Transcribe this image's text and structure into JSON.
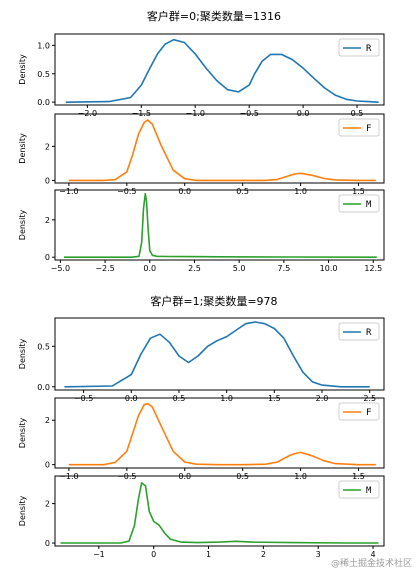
{
  "watermark": "@稀土掘金技术社区",
  "chart_data": [
    {
      "type": "line",
      "group_title": "客户群=0;聚类数量=1316",
      "ylabel": "Density",
      "series_name": "R",
      "color": "#1f77b4",
      "xlim": [
        -2.3,
        0.75
      ],
      "ylim": [
        -0.05,
        1.2
      ],
      "xticks": [
        -2.0,
        -1.5,
        -1.0,
        -0.5,
        0.0,
        0.5
      ],
      "xtick_labels": [
        "−2.0",
        "−1.5",
        "−1.0",
        "−0.5",
        "0.0",
        "0.5"
      ],
      "yticks": [
        0,
        0.5,
        1.0
      ],
      "ytick_labels": [
        "0.0",
        "0.5",
        "1.0"
      ],
      "x": [
        -2.2,
        -1.8,
        -1.6,
        -1.5,
        -1.42,
        -1.35,
        -1.28,
        -1.2,
        -1.1,
        -1.0,
        -0.9,
        -0.8,
        -0.7,
        -0.6,
        -0.5,
        -0.45,
        -0.38,
        -0.3,
        -0.2,
        -0.1,
        0.0,
        0.1,
        0.2,
        0.3,
        0.4,
        0.5,
        0.6,
        0.7
      ],
      "y": [
        0.0,
        0.01,
        0.08,
        0.3,
        0.6,
        0.85,
        1.02,
        1.1,
        1.05,
        0.85,
        0.6,
        0.38,
        0.22,
        0.18,
        0.3,
        0.5,
        0.72,
        0.84,
        0.84,
        0.75,
        0.6,
        0.42,
        0.25,
        0.12,
        0.05,
        0.02,
        0.01,
        0.0
      ]
    },
    {
      "type": "line",
      "ylabel": "Density",
      "series_name": "F",
      "color": "#ff7f0e",
      "xlim": [
        -1.12,
        1.72
      ],
      "ylim": [
        -0.15,
        3.9
      ],
      "xticks": [
        -1.0,
        -0.5,
        0.0,
        0.5,
        1.0,
        1.5
      ],
      "xtick_labels": [
        "−1.0",
        "−0.5",
        "0.0",
        "0.5",
        "1.0",
        "1.5"
      ],
      "yticks": [
        0,
        2
      ],
      "ytick_labels": [
        "0",
        "2"
      ],
      "x": [
        -1.0,
        -0.7,
        -0.6,
        -0.5,
        -0.45,
        -0.4,
        -0.35,
        -0.32,
        -0.28,
        -0.2,
        -0.1,
        0.0,
        0.1,
        0.3,
        0.5,
        0.7,
        0.8,
        0.9,
        0.95,
        1.0,
        1.1,
        1.2,
        1.3,
        1.5,
        1.65
      ],
      "y": [
        0.0,
        0.0,
        0.05,
        0.5,
        1.5,
        2.7,
        3.4,
        3.55,
        3.3,
        2.0,
        0.6,
        0.1,
        0.0,
        0.0,
        0.0,
        0.0,
        0.06,
        0.28,
        0.38,
        0.42,
        0.3,
        0.12,
        0.03,
        0.0,
        0.0
      ]
    },
    {
      "type": "line",
      "ylabel": "Density",
      "series_name": "M",
      "color": "#2ca02c",
      "xlim": [
        -5.3,
        13.1
      ],
      "ylim": [
        -0.15,
        3.6
      ],
      "xticks": [
        -5.0,
        -2.5,
        0.0,
        2.5,
        5.0,
        7.5,
        10.0,
        12.5
      ],
      "xtick_labels": [
        "−5.0",
        "−2.5",
        "0.0",
        "2.5",
        "5.0",
        "7.5",
        "10.0",
        "12.5"
      ],
      "yticks": [
        0,
        2
      ],
      "ytick_labels": [
        "0",
        "2"
      ],
      "x": [
        -4.8,
        -1.0,
        -0.6,
        -0.45,
        -0.35,
        -0.25,
        -0.18,
        -0.1,
        0.0,
        0.15,
        0.4,
        1.0,
        2.0,
        4.0,
        8.0,
        12.7
      ],
      "y": [
        0.0,
        0.0,
        0.05,
        0.8,
        2.6,
        3.4,
        3.0,
        1.6,
        0.35,
        0.1,
        0.05,
        0.04,
        0.03,
        0.02,
        0.01,
        0.0
      ]
    },
    {
      "type": "line",
      "group_title": "客户群=1;聚类数量=978",
      "ylabel": "Density",
      "series_name": "R",
      "color": "#1f77b4",
      "xlim": [
        -0.8,
        2.65
      ],
      "ylim": [
        -0.04,
        0.85
      ],
      "xticks": [
        -0.5,
        0.0,
        0.5,
        1.0,
        1.5,
        2.0,
        2.5
      ],
      "xtick_labels": [
        "−0.5",
        "0.0",
        "0.5",
        "1.0",
        "1.5",
        "2.0",
        "2.5"
      ],
      "yticks": [
        0,
        0.5
      ],
      "ytick_labels": [
        "0.0",
        "0.5"
      ],
      "x": [
        -0.7,
        -0.2,
        0.0,
        0.1,
        0.2,
        0.3,
        0.4,
        0.5,
        0.6,
        0.7,
        0.8,
        0.9,
        1.0,
        1.1,
        1.2,
        1.3,
        1.4,
        1.5,
        1.6,
        1.7,
        1.8,
        1.9,
        2.0,
        2.2,
        2.5
      ],
      "y": [
        0.0,
        0.01,
        0.15,
        0.4,
        0.6,
        0.65,
        0.55,
        0.38,
        0.3,
        0.38,
        0.5,
        0.57,
        0.62,
        0.7,
        0.78,
        0.8,
        0.78,
        0.72,
        0.6,
        0.38,
        0.18,
        0.06,
        0.02,
        0.0,
        0.0
      ]
    },
    {
      "type": "line",
      "ylabel": "Density",
      "series_name": "F",
      "color": "#ff7f0e",
      "xlim": [
        -1.12,
        1.72
      ],
      "ylim": [
        -0.15,
        3.0
      ],
      "xticks": [
        -1.0,
        -0.5,
        0.0,
        0.5,
        1.0,
        1.5
      ],
      "xtick_labels": [
        "−1.0",
        "−0.5",
        "0.0",
        "0.5",
        "1.0",
        "1.5"
      ],
      "yticks": [
        0,
        2
      ],
      "ytick_labels": [
        "0",
        "2"
      ],
      "x": [
        -1.0,
        -0.7,
        -0.6,
        -0.5,
        -0.45,
        -0.4,
        -0.35,
        -0.32,
        -0.28,
        -0.2,
        -0.1,
        0.0,
        0.1,
        0.3,
        0.5,
        0.7,
        0.8,
        0.9,
        0.95,
        1.0,
        1.1,
        1.2,
        1.3,
        1.5,
        1.65
      ],
      "y": [
        0.0,
        0.0,
        0.1,
        0.6,
        1.4,
        2.2,
        2.7,
        2.75,
        2.6,
        1.7,
        0.6,
        0.12,
        0.02,
        0.0,
        0.0,
        0.02,
        0.12,
        0.4,
        0.5,
        0.55,
        0.4,
        0.18,
        0.05,
        0.0,
        0.0
      ]
    },
    {
      "type": "line",
      "ylabel": "Density",
      "series_name": "M",
      "color": "#2ca02c",
      "xlim": [
        -1.8,
        4.2
      ],
      "ylim": [
        -0.15,
        3.4
      ],
      "xticks": [
        -1,
        0,
        1,
        2,
        3,
        4
      ],
      "xtick_labels": [
        "−1",
        "0",
        "1",
        "2",
        "3",
        "4"
      ],
      "yticks": [
        0,
        2
      ],
      "ytick_labels": [
        "0",
        "2"
      ],
      "x": [
        -1.7,
        -0.6,
        -0.45,
        -0.35,
        -0.28,
        -0.22,
        -0.15,
        -0.08,
        0.0,
        0.1,
        0.2,
        0.3,
        0.5,
        0.8,
        1.2,
        1.5,
        1.8,
        2.5,
        3.5,
        4.1
      ],
      "y": [
        0.0,
        0.0,
        0.1,
        0.9,
        2.2,
        3.05,
        2.9,
        1.6,
        1.1,
        0.9,
        0.5,
        0.2,
        0.05,
        0.02,
        0.05,
        0.09,
        0.05,
        0.02,
        0.0,
        0.0
      ]
    }
  ]
}
